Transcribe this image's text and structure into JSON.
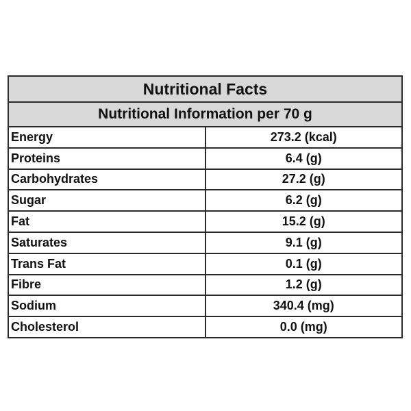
{
  "table": {
    "title": "Nutritional Facts",
    "subtitle": "Nutritional Information per 70 g",
    "rows": [
      {
        "name": "Energy",
        "value": "273.2 (kcal)"
      },
      {
        "name": "Proteins",
        "value": "6.4 (g)"
      },
      {
        "name": "Carbohydrates",
        "value": "27.2 (g)"
      },
      {
        "name": "Sugar",
        "value": "6.2 (g)"
      },
      {
        "name": "Fat",
        "value": "15.2 (g)"
      },
      {
        "name": "Saturates",
        "value": "9.1 (g)"
      },
      {
        "name": "Trans Fat",
        "value": "0.1 (g)"
      },
      {
        "name": "Fibre",
        "value": "1.2 (g)"
      },
      {
        "name": "Sodium",
        "value": "340.4 (mg)"
      },
      {
        "name": "Cholesterol",
        "value": "0.0 (mg)"
      }
    ]
  },
  "colors": {
    "header_background": "#d8d8d8",
    "border": "#2a2a2a",
    "text": "#111111"
  }
}
